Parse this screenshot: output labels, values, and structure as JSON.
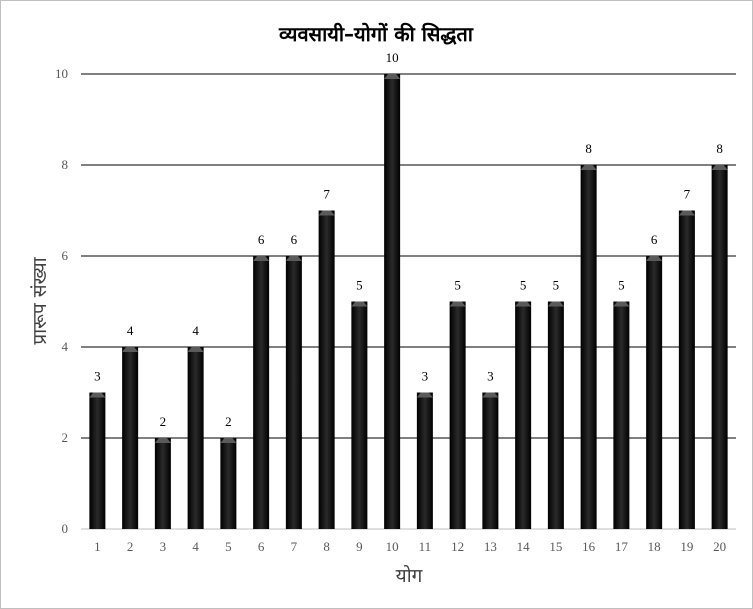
{
  "chart_data": {
    "type": "bar",
    "title": "व्यवसायी–योगों की सिद्धता",
    "xlabel": "योग",
    "ylabel": "प्रारूप संख्या",
    "categories": [
      "1",
      "2",
      "3",
      "4",
      "5",
      "6",
      "7",
      "8",
      "9",
      "10",
      "11",
      "12",
      "13",
      "14",
      "15",
      "16",
      "17",
      "18",
      "19",
      "20"
    ],
    "values": [
      3,
      4,
      2,
      4,
      2,
      6,
      6,
      7,
      5,
      10,
      3,
      5,
      3,
      5,
      5,
      8,
      5,
      6,
      7,
      8
    ],
    "ylim": [
      0,
      10
    ],
    "yticks": [
      "0",
      "2",
      "4",
      "6",
      "8",
      "10"
    ],
    "grid": true,
    "bar_color": "#000000",
    "data_labels": true
  }
}
